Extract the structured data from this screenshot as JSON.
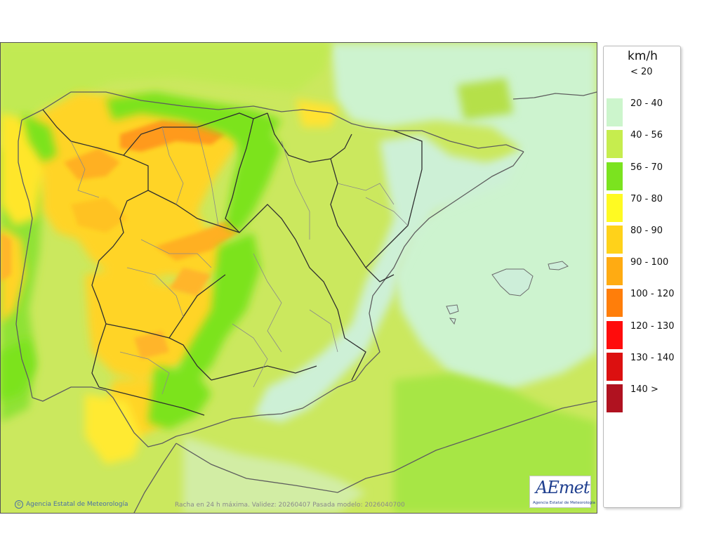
{
  "legend": {
    "unit": "km/h",
    "classes": [
      {
        "label": "< 20",
        "color": "#ffffff"
      },
      {
        "label": "20 - 40",
        "color": "#ccf5cc"
      },
      {
        "label": "40 - 56",
        "color": "#c6ed4e"
      },
      {
        "label": "56 - 70",
        "color": "#7be31f"
      },
      {
        "label": "70 - 80",
        "color": "#fffa22"
      },
      {
        "label": "80 - 90",
        "color": "#ffd21a"
      },
      {
        "label": "90 - 100",
        "color": "#ffab12"
      },
      {
        "label": "100 - 120",
        "color": "#ff7e0a"
      },
      {
        "label": "120 - 130",
        "color": "#ff0c0c"
      },
      {
        "label": "130 - 140",
        "color": "#dc1010"
      },
      {
        "label": "140 >",
        "color": "#b01220"
      }
    ]
  },
  "credits": {
    "copyright": "©",
    "agency": "Agencia Estatal de Meteorología",
    "caption": "Racha en 24 h máxima. Validez: 20260407 Pasada modelo: 2026040700"
  },
  "logo": {
    "word": "AEmet",
    "subtitle": "Agencia Estatal de Meteorología"
  },
  "map": {
    "sea_color": "#cdeccf",
    "base_color": "#cbe85e",
    "icons": [
      "aemet-logo"
    ]
  }
}
